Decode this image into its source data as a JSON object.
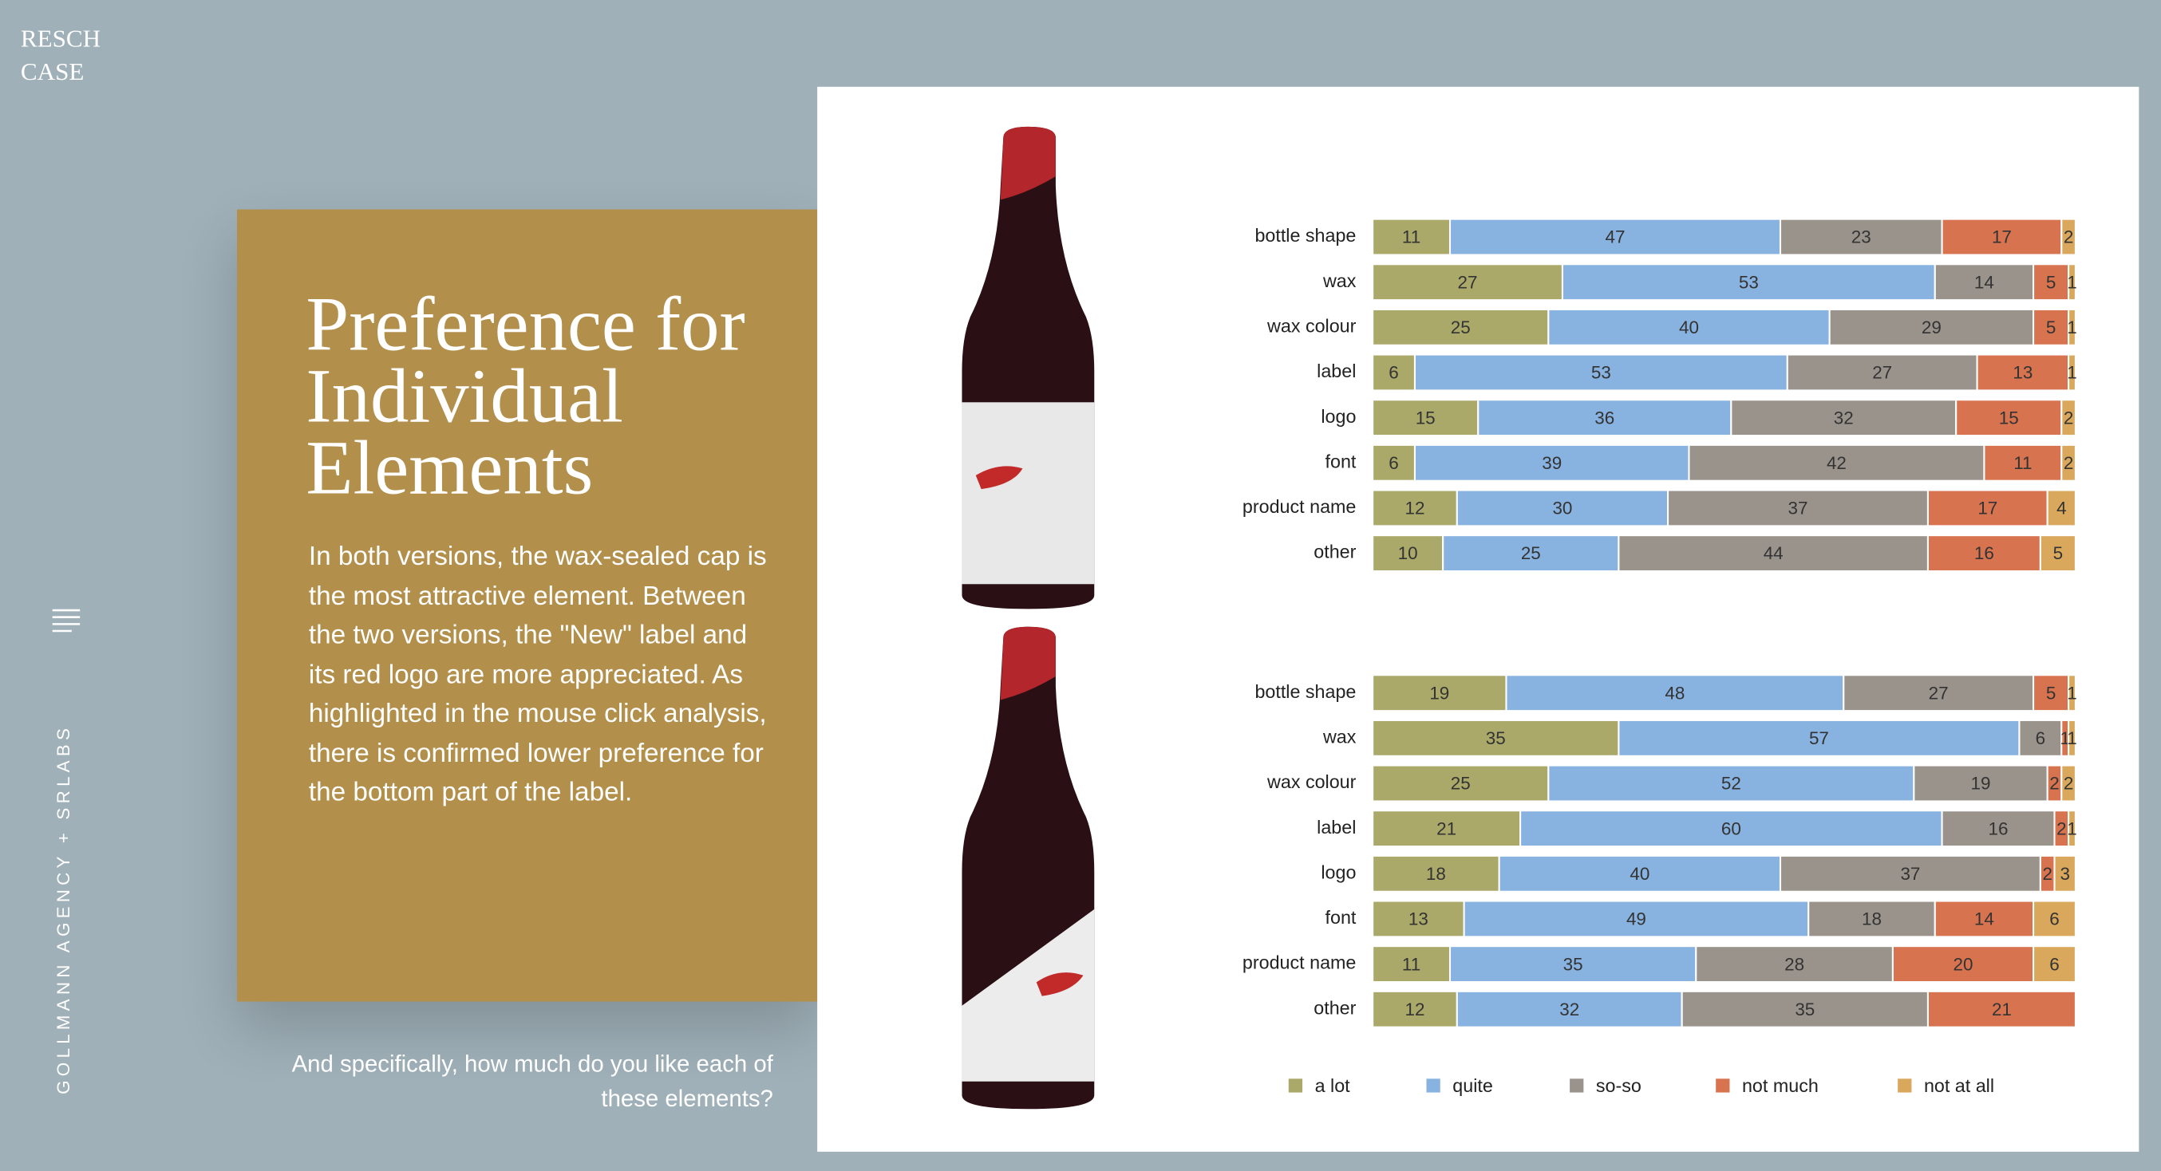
{
  "header": {
    "brand_lines": [
      "RESCH",
      "CASE"
    ],
    "credit": "GOLLMANN AGENCY + SRLABS"
  },
  "slide": {
    "title": "Preference for Individual Elements",
    "body": "In both versions, the wax-sealed cap is the most attractive element. Between the two versions, the \"New\" label and its red logo are more appreciated. As highlighted in the mouse click analysis, there is confirmed lower preference for the bottom part of the label.",
    "question": "And specifically, how much do you like each of these elements?"
  },
  "legend": {
    "position": "bottom",
    "items": [
      {
        "name": "a lot",
        "color": "#aaa96a"
      },
      {
        "name": "quite",
        "color": "#88b2df"
      },
      {
        "name": "so-so",
        "color": "#9a938c"
      },
      {
        "name": "not much",
        "color": "#d7734f"
      },
      {
        "name": "not at all",
        "color": "#d9a85c"
      }
    ]
  },
  "chart_data": [
    {
      "type": "stacked-bar",
      "orientation": "horizontal",
      "xlim": [
        0,
        100
      ],
      "categories": [
        "bottle shape",
        "wax",
        "wax colour",
        "label",
        "logo",
        "font",
        "product name",
        "other"
      ],
      "series": [
        {
          "values": [
            11,
            27,
            25,
            6,
            15,
            6,
            12,
            10
          ]
        },
        {
          "values": [
            47,
            53,
            40,
            53,
            36,
            39,
            30,
            25
          ]
        },
        {
          "values": [
            23,
            14,
            29,
            27,
            32,
            42,
            37,
            44
          ]
        },
        {
          "values": [
            17,
            5,
            5,
            13,
            15,
            11,
            17,
            16
          ]
        },
        {
          "values": [
            2,
            1,
            1,
            1,
            2,
            2,
            4,
            5
          ]
        }
      ]
    },
    {
      "type": "stacked-bar",
      "orientation": "horizontal",
      "xlim": [
        0,
        100
      ],
      "categories": [
        "bottle shape",
        "wax",
        "wax colour",
        "label",
        "logo",
        "font",
        "product name",
        "other"
      ],
      "series": [
        {
          "values": [
            19,
            35,
            25,
            21,
            18,
            13,
            11,
            12
          ]
        },
        {
          "values": [
            48,
            57,
            52,
            60,
            40,
            49,
            35,
            32
          ]
        },
        {
          "values": [
            27,
            6,
            19,
            16,
            37,
            18,
            28,
            35
          ]
        },
        {
          "values": [
            5,
            1,
            2,
            2,
            2,
            14,
            20,
            21
          ]
        },
        {
          "values": [
            1,
            1,
            2,
            1,
            3,
            6,
            6,
            0
          ]
        }
      ]
    }
  ]
}
